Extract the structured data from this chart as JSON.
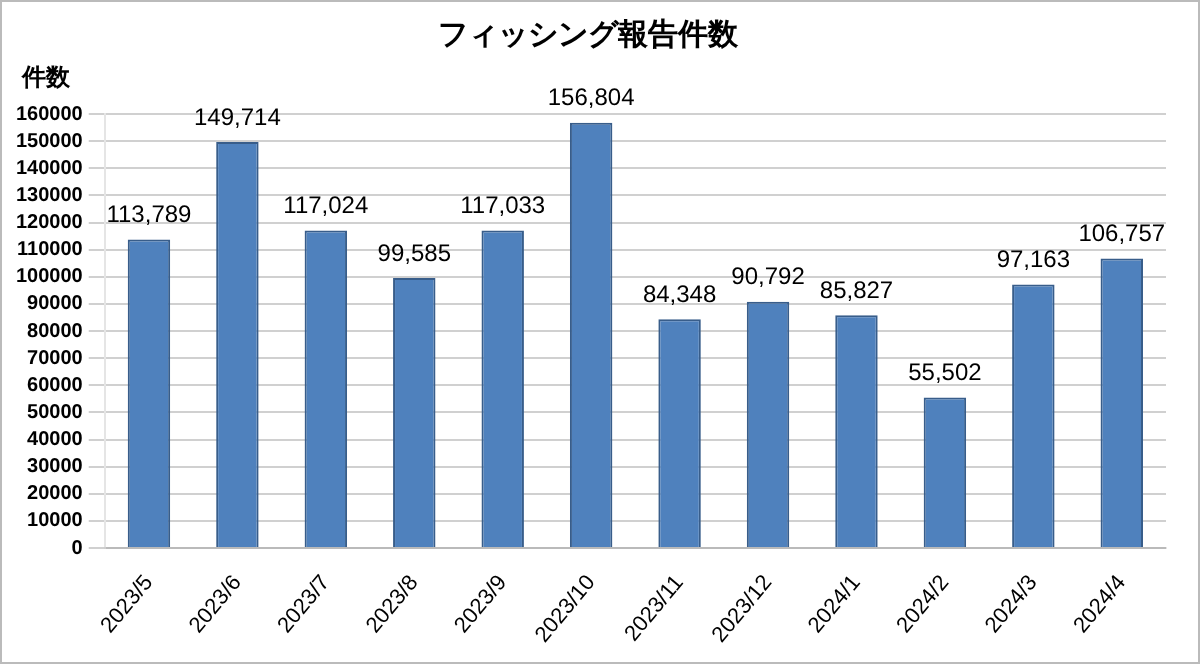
{
  "chart_data": {
    "type": "bar",
    "title": "フィッシング報告件数",
    "ylabel": "件数",
    "categories": [
      "2023/5",
      "2023/6",
      "2023/7",
      "2023/8",
      "2023/9",
      "2023/10",
      "2023/11",
      "2023/12",
      "2024/1",
      "2024/2",
      "2024/3",
      "2024/4"
    ],
    "values": [
      113789,
      149714,
      117024,
      99585,
      117033,
      156804,
      84348,
      90792,
      85827,
      55502,
      97163,
      106757
    ],
    "value_labels": [
      "113,789",
      "149,714",
      "117,024",
      "99,585",
      "117,033",
      "156,804",
      "84,348",
      "90,792",
      "85,827",
      "55,502",
      "97,163",
      "106,757"
    ],
    "color": "#4f81bd",
    "ylim": [
      0,
      160000
    ],
    "yticks": [
      0,
      10000,
      20000,
      30000,
      40000,
      50000,
      60000,
      70000,
      80000,
      90000,
      100000,
      110000,
      120000,
      130000,
      140000,
      150000,
      160000
    ],
    "grid": "y"
  }
}
